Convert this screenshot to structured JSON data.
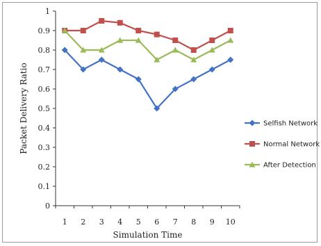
{
  "chart_data": {
    "type": "line",
    "title": "",
    "xlabel": "Simulation Time",
    "ylabel": "Packet Delivery Ratio",
    "categories": [
      "1",
      "2",
      "3",
      "4",
      "5",
      "6",
      "7",
      "8",
      "9",
      "10"
    ],
    "y_ticks": [
      "0",
      "0.1",
      "0.2",
      "0.3",
      "0.4",
      "0.5",
      "0.6",
      "0.7",
      "0.8",
      "0.9",
      "1"
    ],
    "ylim": [
      0,
      1
    ],
    "grid": false,
    "legend_position": "right",
    "series": [
      {
        "name": "Selfish Network",
        "color": "#4472C4",
        "marker": "diamond",
        "values": [
          0.8,
          0.7,
          0.75,
          0.7,
          0.65,
          0.5,
          0.6,
          0.65,
          0.7,
          0.75
        ]
      },
      {
        "name": "Normal Network",
        "color": "#C0504D",
        "marker": "square",
        "values": [
          0.9,
          0.9,
          0.95,
          0.94,
          0.9,
          0.88,
          0.85,
          0.8,
          0.85,
          0.9
        ]
      },
      {
        "name": "After Detection",
        "color": "#9BBB59",
        "marker": "triangle",
        "values": [
          0.9,
          0.8,
          0.8,
          0.85,
          0.85,
          0.75,
          0.8,
          0.75,
          0.8,
          0.85
        ]
      }
    ]
  }
}
